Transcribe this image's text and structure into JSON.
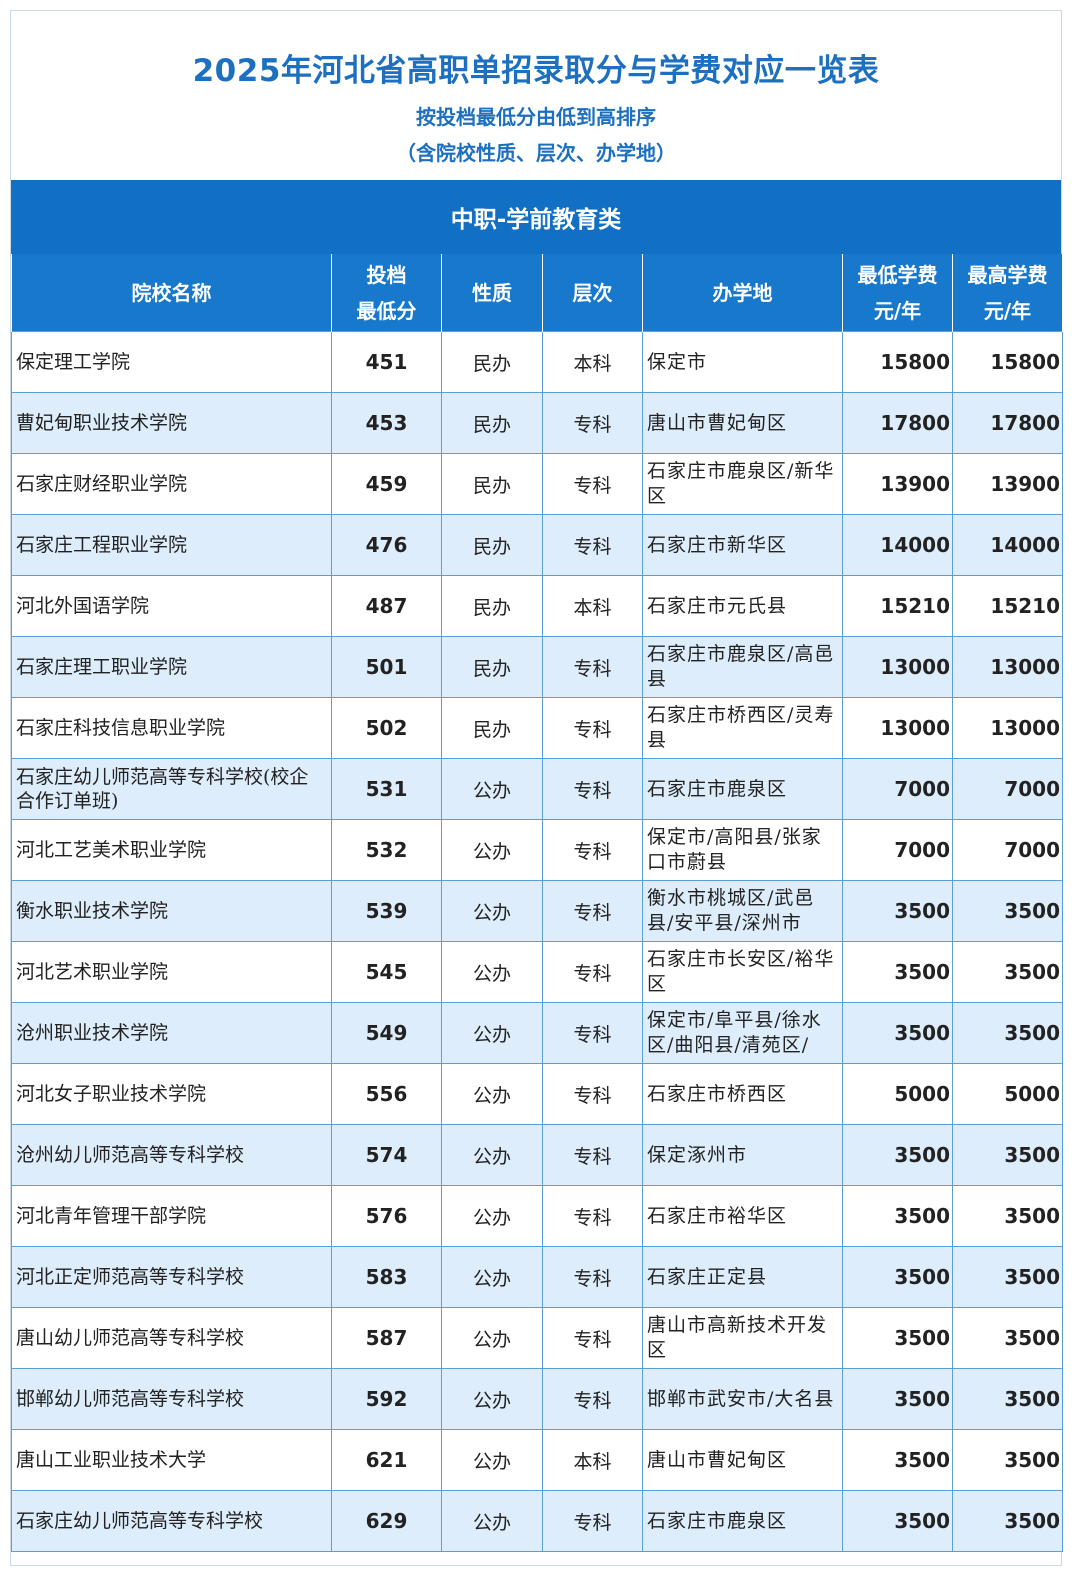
{
  "header": {
    "title": "2025年河北省高职单招录取分与学费对应一览表",
    "subtitle": "按投档最低分由低到高排序",
    "note": "（含院校性质、层次、办学地）"
  },
  "section": {
    "label": "中职-学前教育类"
  },
  "columns": {
    "name": "院校名称",
    "score_line1": "投档",
    "score_line2": "最低分",
    "nature": "性质",
    "level": "层次",
    "location": "办学地",
    "min_fee_line1": "最低学费",
    "min_fee_line2": "元/年",
    "max_fee_line1": "最高学费",
    "max_fee_line2": "元/年"
  },
  "rows": [
    {
      "name": "保定理工学院",
      "score": "451",
      "nature": "民办",
      "level": "本科",
      "location": "保定市",
      "min_fee": "15800",
      "max_fee": "15800"
    },
    {
      "name": "曹妃甸职业技术学院",
      "score": "453",
      "nature": "民办",
      "level": "专科",
      "location": "唐山市曹妃甸区",
      "min_fee": "17800",
      "max_fee": "17800"
    },
    {
      "name": "石家庄财经职业学院",
      "score": "459",
      "nature": "民办",
      "level": "专科",
      "location": "石家庄市鹿泉区/新华区",
      "min_fee": "13900",
      "max_fee": "13900"
    },
    {
      "name": "石家庄工程职业学院",
      "score": "476",
      "nature": "民办",
      "level": "专科",
      "location": "石家庄市新华区",
      "min_fee": "14000",
      "max_fee": "14000"
    },
    {
      "name": "河北外国语学院",
      "score": "487",
      "nature": "民办",
      "level": "本科",
      "location": "石家庄市元氏县",
      "min_fee": "15210",
      "max_fee": "15210"
    },
    {
      "name": "石家庄理工职业学院",
      "score": "501",
      "nature": "民办",
      "level": "专科",
      "location": "石家庄市鹿泉区/高邑县",
      "min_fee": "13000",
      "max_fee": "13000"
    },
    {
      "name": "石家庄科技信息职业学院",
      "score": "502",
      "nature": "民办",
      "level": "专科",
      "location": "石家庄市桥西区/灵寿县",
      "min_fee": "13000",
      "max_fee": "13000"
    },
    {
      "name": "石家庄幼儿师范高等专科学校(校企合作订单班)",
      "score": "531",
      "nature": "公办",
      "level": "专科",
      "location": "石家庄市鹿泉区",
      "min_fee": "7000",
      "max_fee": "7000"
    },
    {
      "name": "河北工艺美术职业学院",
      "score": "532",
      "nature": "公办",
      "level": "专科",
      "location": "保定市/高阳县/张家口市蔚县",
      "min_fee": "7000",
      "max_fee": "7000"
    },
    {
      "name": "衡水职业技术学院",
      "score": "539",
      "nature": "公办",
      "level": "专科",
      "location": "衡水市桃城区/武邑县/安平县/深州市",
      "min_fee": "3500",
      "max_fee": "3500"
    },
    {
      "name": "河北艺术职业学院",
      "score": "545",
      "nature": "公办",
      "level": "专科",
      "location": "石家庄市长安区/裕华区",
      "min_fee": "3500",
      "max_fee": "3500"
    },
    {
      "name": "沧州职业技术学院",
      "score": "549",
      "nature": "公办",
      "level": "专科",
      "location": "保定市/阜平县/徐水区/曲阳县/清苑区/",
      "min_fee": "3500",
      "max_fee": "3500"
    },
    {
      "name": "河北女子职业技术学院",
      "score": "556",
      "nature": "公办",
      "level": "专科",
      "location": "石家庄市桥西区",
      "min_fee": "5000",
      "max_fee": "5000"
    },
    {
      "name": "沧州幼儿师范高等专科学校",
      "score": "574",
      "nature": "公办",
      "level": "专科",
      "location": "保定涿州市",
      "min_fee": "3500",
      "max_fee": "3500"
    },
    {
      "name": "河北青年管理干部学院",
      "score": "576",
      "nature": "公办",
      "level": "专科",
      "location": "石家庄市裕华区",
      "min_fee": "3500",
      "max_fee": "3500"
    },
    {
      "name": "河北正定师范高等专科学校",
      "score": "583",
      "nature": "公办",
      "level": "专科",
      "location": "石家庄正定县",
      "min_fee": "3500",
      "max_fee": "3500"
    },
    {
      "name": "唐山幼儿师范高等专科学校",
      "score": "587",
      "nature": "公办",
      "level": "专科",
      "location": "唐山市高新技术开发区",
      "min_fee": "3500",
      "max_fee": "3500"
    },
    {
      "name": "邯郸幼儿师范高等专科学校",
      "score": "592",
      "nature": "公办",
      "level": "专科",
      "location": "邯郸市武安市/大名县",
      "min_fee": "3500",
      "max_fee": "3500"
    },
    {
      "name": "唐山工业职业技术大学",
      "score": "621",
      "nature": "公办",
      "level": "本科",
      "location": "唐山市曹妃甸区",
      "min_fee": "3500",
      "max_fee": "3500"
    },
    {
      "name": "石家庄幼儿师范高等专科学校",
      "score": "629",
      "nature": "公办",
      "level": "专科",
      "location": "石家庄市鹿泉区",
      "min_fee": "3500",
      "max_fee": "3500"
    }
  ]
}
